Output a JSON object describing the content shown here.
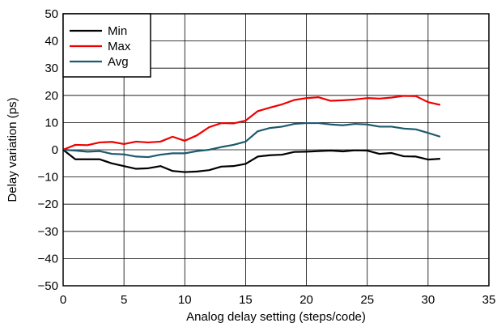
{
  "chart_data": {
    "type": "line",
    "title": "",
    "xlabel": "Analog delay setting (steps/code)",
    "ylabel": "Delay variation (ps)",
    "xlim": [
      0,
      35
    ],
    "ylim": [
      -50,
      50
    ],
    "xticks": [
      0,
      5,
      10,
      15,
      20,
      25,
      30,
      35
    ],
    "yticks": [
      -50,
      -40,
      -30,
      -20,
      -10,
      0,
      10,
      20,
      30,
      40,
      50
    ],
    "grid": true,
    "legend_position": "top-left",
    "x": [
      0,
      1,
      2,
      3,
      4,
      5,
      6,
      7,
      8,
      9,
      10,
      11,
      12,
      13,
      14,
      15,
      16,
      17,
      18,
      19,
      20,
      21,
      22,
      23,
      24,
      25,
      26,
      27,
      28,
      29,
      30,
      31
    ],
    "series": [
      {
        "name": "Min",
        "color": "#000000",
        "values": [
          0,
          -3.5,
          -3.5,
          -3.5,
          -5,
          -6,
          -7,
          -6.8,
          -6,
          -7.8,
          -8.2,
          -8,
          -7.5,
          -6.2,
          -6,
          -5.2,
          -2.5,
          -2,
          -1.8,
          -0.8,
          -0.7,
          -0.5,
          -0.3,
          -0.6,
          -0.2,
          -0.3,
          -1.5,
          -1.2,
          -2.4,
          -2.5,
          -3.6,
          -3.3
        ]
      },
      {
        "name": "Max",
        "color": "#ee0000",
        "values": [
          0,
          1.8,
          1.7,
          2.7,
          2.9,
          2.1,
          3,
          2.7,
          3,
          4.8,
          3.3,
          5.3,
          8.3,
          9.8,
          9.7,
          10.7,
          14.2,
          15.5,
          16.7,
          18.3,
          19,
          19.3,
          18,
          18.2,
          18.5,
          19,
          18.8,
          19.2,
          19.8,
          19.7,
          17.5,
          16.5
        ]
      },
      {
        "name": "Avg",
        "color": "#1e5a6e",
        "values": [
          0,
          -0.3,
          -0.7,
          -0.5,
          -1.5,
          -1.7,
          -2.5,
          -2.7,
          -1.8,
          -1.3,
          -1.3,
          -0.5,
          0,
          1,
          1.8,
          3,
          6.8,
          8,
          8.5,
          9.5,
          9.8,
          9.8,
          9.3,
          9,
          9.5,
          9.3,
          8.5,
          8.5,
          7.8,
          7.5,
          6.2,
          4.8
        ]
      }
    ]
  }
}
